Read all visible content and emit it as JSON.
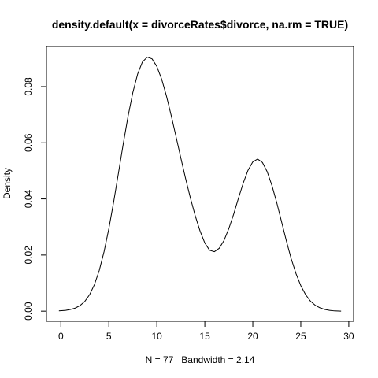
{
  "chart_data": {
    "type": "line",
    "title": "density.default(x = divorceRates$divorce, na.rm = TRUE)",
    "xlabel": "N = 77   Bandwidth = 2.14",
    "ylabel": "Density",
    "xlim": [
      -1.5,
      30.5
    ],
    "ylim": [
      -0.0036,
      0.0943
    ],
    "x_ticks": [
      0,
      5,
      10,
      15,
      20,
      25,
      30
    ],
    "x_tick_labels": [
      "0",
      "5",
      "10",
      "15",
      "20",
      "25",
      "30"
    ],
    "y_ticks": [
      0.0,
      0.02,
      0.04,
      0.06,
      0.08
    ],
    "y_tick_labels": [
      "0.00",
      "0.02",
      "0.04",
      "0.06",
      "0.08"
    ],
    "grid": false,
    "series": [
      {
        "color": "#000000",
        "x": [
          -0.2,
          0.5,
          1,
          1.5,
          2,
          2.5,
          3,
          3.5,
          4,
          4.5,
          5,
          5.5,
          6,
          6.5,
          7,
          7.5,
          8,
          8.5,
          9,
          9.5,
          10,
          10.5,
          11,
          11.5,
          12,
          12.5,
          13,
          13.5,
          14,
          14.5,
          15,
          15.5,
          16,
          16.5,
          17,
          17.5,
          18,
          18.5,
          19,
          19.5,
          20,
          20.5,
          21,
          21.5,
          22,
          22.5,
          23,
          23.5,
          24,
          24.5,
          25,
          25.5,
          26,
          26.5,
          27,
          27.5,
          28,
          28.5,
          29.2
        ],
        "y": [
          0.0001,
          0.0003,
          0.0006,
          0.0011,
          0.002,
          0.0035,
          0.0059,
          0.0095,
          0.0145,
          0.0212,
          0.0294,
          0.0389,
          0.0492,
          0.0596,
          0.0694,
          0.0779,
          0.0845,
          0.0888,
          0.0905,
          0.0899,
          0.0872,
          0.0827,
          0.0767,
          0.0697,
          0.0622,
          0.0546,
          0.0472,
          0.0403,
          0.034,
          0.0286,
          0.0243,
          0.0217,
          0.0212,
          0.0224,
          0.0252,
          0.0294,
          0.0345,
          0.0402,
          0.0456,
          0.0502,
          0.0532,
          0.0542,
          0.053,
          0.0497,
          0.0447,
          0.0386,
          0.0318,
          0.025,
          0.0187,
          0.0134,
          0.0091,
          0.0059,
          0.0036,
          0.0021,
          0.0012,
          0.0006,
          0.0003,
          0.0001,
          0.0
        ]
      }
    ]
  }
}
